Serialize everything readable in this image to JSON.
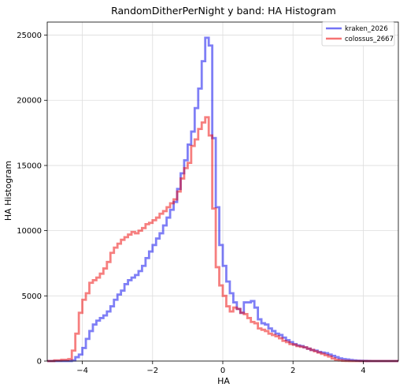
{
  "chart_data": {
    "type": "line",
    "step": true,
    "title": "RandomDitherPerNight y band: HA Histogram",
    "xlabel": "HA",
    "ylabel": "HA Histogram",
    "xlim": [
      -5,
      5
    ],
    "ylim": [
      0,
      26000
    ],
    "xticks": [
      -4,
      -2,
      0,
      2,
      4
    ],
    "xtick_labels": [
      "−4",
      "−2",
      "0",
      "2",
      "4"
    ],
    "yticks": [
      0,
      5000,
      10000,
      15000,
      20000,
      25000
    ],
    "ytick_labels": [
      "0",
      "5000",
      "10000",
      "15000",
      "20000",
      "25000"
    ],
    "grid": true,
    "legend_position": "top-right",
    "series": [
      {
        "name": "kraken_2026",
        "color": "#0000ee",
        "x": [
          -5.0,
          -4.8,
          -4.6,
          -4.4,
          -4.3,
          -4.2,
          -4.1,
          -4.0,
          -3.9,
          -3.8,
          -3.7,
          -3.6,
          -3.5,
          -3.4,
          -3.3,
          -3.2,
          -3.1,
          -3.0,
          -2.9,
          -2.8,
          -2.7,
          -2.6,
          -2.5,
          -2.4,
          -2.3,
          -2.2,
          -2.1,
          -2.0,
          -1.9,
          -1.8,
          -1.7,
          -1.6,
          -1.5,
          -1.4,
          -1.3,
          -1.2,
          -1.1,
          -1.0,
          -0.9,
          -0.8,
          -0.7,
          -0.6,
          -0.5,
          -0.4,
          -0.3,
          -0.2,
          -0.1,
          0.0,
          0.1,
          0.2,
          0.3,
          0.4,
          0.5,
          0.6,
          0.7,
          0.8,
          0.9,
          1.0,
          1.1,
          1.2,
          1.3,
          1.4,
          1.5,
          1.6,
          1.7,
          1.8,
          1.9,
          2.0,
          2.1,
          2.2,
          2.3,
          2.4,
          2.5,
          2.6,
          2.7,
          2.8,
          2.9,
          3.0,
          3.1,
          3.2,
          3.3,
          3.4,
          3.5,
          3.6,
          3.7,
          3.8,
          3.9,
          4.0,
          4.1,
          4.2,
          4.3,
          4.4,
          4.5,
          4.6,
          4.8,
          5.0
        ],
        "values": [
          0,
          0,
          0,
          0,
          50,
          300,
          500,
          1000,
          1700,
          2300,
          2800,
          3100,
          3300,
          3500,
          3800,
          4200,
          4700,
          5100,
          5400,
          5900,
          6200,
          6400,
          6600,
          6900,
          7300,
          7900,
          8400,
          8900,
          9400,
          9800,
          10400,
          11000,
          11600,
          12200,
          13200,
          14400,
          15400,
          16600,
          17600,
          19400,
          20900,
          23000,
          24800,
          24200,
          17100,
          11800,
          8900,
          7300,
          6100,
          5200,
          4500,
          4000,
          3700,
          4500,
          4500,
          4600,
          4100,
          3200,
          2900,
          2800,
          2500,
          2300,
          2100,
          2000,
          1800,
          1600,
          1450,
          1300,
          1200,
          1150,
          1050,
          950,
          850,
          800,
          700,
          650,
          600,
          500,
          400,
          300,
          200,
          150,
          120,
          80,
          50,
          30,
          20,
          10,
          5,
          0,
          0,
          0,
          0,
          0,
          0,
          0
        ],
        "x_note": "bin left edges; last bin ends at 5.0"
      },
      {
        "name": "colossus_2667",
        "color": "#ee0000",
        "x": [
          -5.0,
          -4.8,
          -4.6,
          -4.4,
          -4.3,
          -4.2,
          -4.1,
          -4.0,
          -3.9,
          -3.8,
          -3.7,
          -3.6,
          -3.5,
          -3.4,
          -3.3,
          -3.2,
          -3.1,
          -3.0,
          -2.9,
          -2.8,
          -2.7,
          -2.6,
          -2.5,
          -2.4,
          -2.3,
          -2.2,
          -2.1,
          -2.0,
          -1.9,
          -1.8,
          -1.7,
          -1.6,
          -1.5,
          -1.4,
          -1.3,
          -1.2,
          -1.1,
          -1.0,
          -0.9,
          -0.8,
          -0.7,
          -0.6,
          -0.5,
          -0.4,
          -0.3,
          -0.2,
          -0.1,
          0.0,
          0.1,
          0.2,
          0.3,
          0.4,
          0.5,
          0.6,
          0.7,
          0.8,
          0.9,
          1.0,
          1.1,
          1.2,
          1.3,
          1.4,
          1.5,
          1.6,
          1.7,
          1.8,
          1.9,
          2.0,
          2.1,
          2.2,
          2.3,
          2.4,
          2.5,
          2.6,
          2.7,
          2.8,
          2.9,
          3.0,
          3.1,
          3.2,
          3.3,
          3.4,
          3.5,
          3.6,
          3.7,
          3.8,
          3.9,
          4.0,
          4.1,
          4.2,
          4.3,
          4.4,
          4.5,
          4.6,
          4.8,
          5.0
        ],
        "values": [
          0,
          50,
          100,
          150,
          800,
          2100,
          3700,
          4700,
          5200,
          6000,
          6200,
          6400,
          6700,
          7100,
          7600,
          8300,
          8700,
          9000,
          9300,
          9500,
          9700,
          9900,
          9800,
          10000,
          10200,
          10500,
          10600,
          10800,
          11000,
          11300,
          11500,
          11800,
          12100,
          12400,
          13000,
          14000,
          14800,
          15200,
          16500,
          17000,
          17800,
          18300,
          18700,
          17300,
          11700,
          7200,
          5800,
          5000,
          4200,
          3800,
          4100,
          4000,
          3700,
          3600,
          3300,
          3000,
          2900,
          2500,
          2400,
          2300,
          2100,
          2000,
          1900,
          1750,
          1550,
          1450,
          1300,
          1250,
          1150,
          1100,
          1050,
          950,
          850,
          750,
          650,
          550,
          450,
          350,
          200,
          100,
          50,
          20,
          10,
          0,
          0,
          0,
          0,
          0,
          0,
          0,
          0,
          0,
          0,
          0,
          0,
          0
        ],
        "x_note": "bin left edges; last bin ends at 5.0"
      }
    ]
  }
}
